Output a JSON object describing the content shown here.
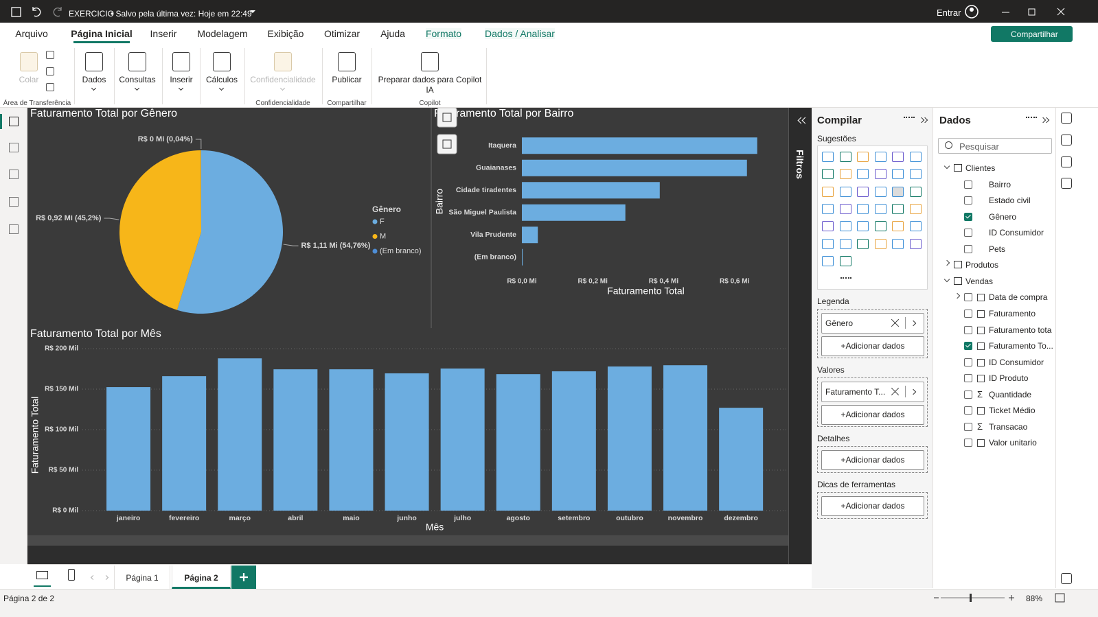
{
  "title_bar": {
    "file": "EXERCICIO",
    "status": "• Salvo pela última vez: Hoje em 22:49",
    "sign_in": "Entrar"
  },
  "ribbon": {
    "tabs": [
      "Arquivo",
      "Página Inicial",
      "Inserir",
      "Modelagem",
      "Exibição",
      "Otimizar",
      "Ajuda",
      "Formato",
      "Dados / Analisar"
    ],
    "active_tab": 1,
    "contextual_from": 7,
    "share": "Compartilhar",
    "buttons": [
      {
        "label": "Colar",
        "disabled": true
      },
      {
        "label": "Dados",
        "menu": true
      },
      {
        "label": "Consultas",
        "menu": true
      },
      {
        "label": "Inserir",
        "menu": true
      },
      {
        "label": "Cálculos",
        "menu": true
      },
      {
        "label": "Confidencialidade",
        "disabled": true,
        "menu": true
      },
      {
        "label": "Publicar"
      },
      {
        "label": "Preparar dados para Copilot IA"
      }
    ],
    "groups": [
      "Área de Transferência",
      "Confidencialidade",
      "Compartilhar",
      "Copilot"
    ]
  },
  "chart_data": [
    {
      "type": "pie",
      "title": "Faturamento Total por Gênero",
      "legend_title": "Gênero",
      "legend": "right",
      "categories": [
        "F",
        "M",
        "(Em branco)"
      ],
      "values": [
        54.76,
        45.2,
        0.04
      ],
      "value_labels": [
        "R$ 1,11 Mi (54,76%)",
        "R$ 0,92 Mi (45,2%)",
        "R$ 0 Mi (0,04%)"
      ],
      "colors": [
        "#6cade0",
        "#f7b619",
        "#4e8ed6"
      ]
    },
    {
      "type": "bar",
      "orientation": "horizontal",
      "title": "Faturamento Total por Bairro",
      "x_label": "Faturamento Total",
      "y_label": "Bairro",
      "categories": [
        "Itaquera",
        "Guaianases",
        "Cidade tiradentes",
        "São Miguel Paulista",
        "Vila Prudente",
        "(Em branco)"
      ],
      "values": [
        0.664,
        0.635,
        0.389,
        0.292,
        0.045,
        0.002
      ],
      "color": "#6cade0",
      "xlim": [
        0,
        0.68
      ],
      "xticks": [
        {
          "value": 0,
          "label": "R$ 0,0 Mi"
        },
        {
          "value": 0.2,
          "label": "R$ 0,2 Mi"
        },
        {
          "value": 0.4,
          "label": "R$ 0,4 Mi"
        },
        {
          "value": 0.6,
          "label": "R$ 0,6 Mi"
        }
      ],
      "grid": false
    },
    {
      "type": "bar",
      "orientation": "vertical",
      "title": "Faturamento Total por Mês",
      "x_label": "Mês",
      "y_label": "Faturamento Total",
      "categories": [
        "janeiro",
        "fevereiro",
        "março",
        "abril",
        "maio",
        "junho",
        "julho",
        "agosto",
        "setembro",
        "outubro",
        "novembro",
        "dezembro"
      ],
      "values": [
        152.5,
        166,
        188,
        174.5,
        174.5,
        169.5,
        175.5,
        168.5,
        172,
        178,
        179.5,
        127
      ],
      "color": "#6cade0",
      "ylim": [
        0,
        200
      ],
      "yticks": [
        {
          "value": 0,
          "label": "R$ 0 Mil"
        },
        {
          "value": 50,
          "label": "R$ 50 Mil"
        },
        {
          "value": 100,
          "label": "R$ 100 Mil"
        },
        {
          "value": 150,
          "label": "R$ 150 Mil"
        },
        {
          "value": 200,
          "label": "R$ 200 Mil"
        }
      ],
      "grid": true
    }
  ],
  "filters_pane": {
    "label": "Filtros"
  },
  "build_pane": {
    "title": "Compilar",
    "suggestions": "Sugestões",
    "add_data": "+Adicionar dados",
    "wells": [
      {
        "label": "Legenda",
        "field": "Gênero"
      },
      {
        "label": "Valores",
        "field": "Faturamento T..."
      },
      {
        "label": "Detalhes"
      },
      {
        "label": "Dicas de ferramentas"
      }
    ]
  },
  "data_pane": {
    "title": "Dados",
    "search": "Pesquisar",
    "tables": [
      {
        "name": "Clientes",
        "expanded": true,
        "fields": [
          {
            "name": "Bairro"
          },
          {
            "name": "Estado civil"
          },
          {
            "name": "Gênero",
            "checked": true
          },
          {
            "name": "ID Consumidor"
          },
          {
            "name": "Pets"
          }
        ]
      },
      {
        "name": "Produtos",
        "expanded": false,
        "fields": []
      },
      {
        "name": "Vendas",
        "expanded": true,
        "fields": [
          {
            "name": "Data de compra",
            "expandable": true
          },
          {
            "name": "Faturamento"
          },
          {
            "name": "Faturamento tota"
          },
          {
            "name": "Faturamento To...",
            "checked": true
          },
          {
            "name": "ID Consumidor"
          },
          {
            "name": "ID Produto"
          },
          {
            "name": "Quantidade",
            "icon": "Σ"
          },
          {
            "name": "Ticket Médio"
          },
          {
            "name": "Transacao",
            "icon": "Σ"
          },
          {
            "name": "Valor unitario"
          }
        ]
      }
    ]
  },
  "pages": {
    "tabs": [
      "Página 1",
      "Página 2"
    ],
    "active": 1
  },
  "status_bar": {
    "page": "Página 2 de 2",
    "zoom": "88%"
  }
}
